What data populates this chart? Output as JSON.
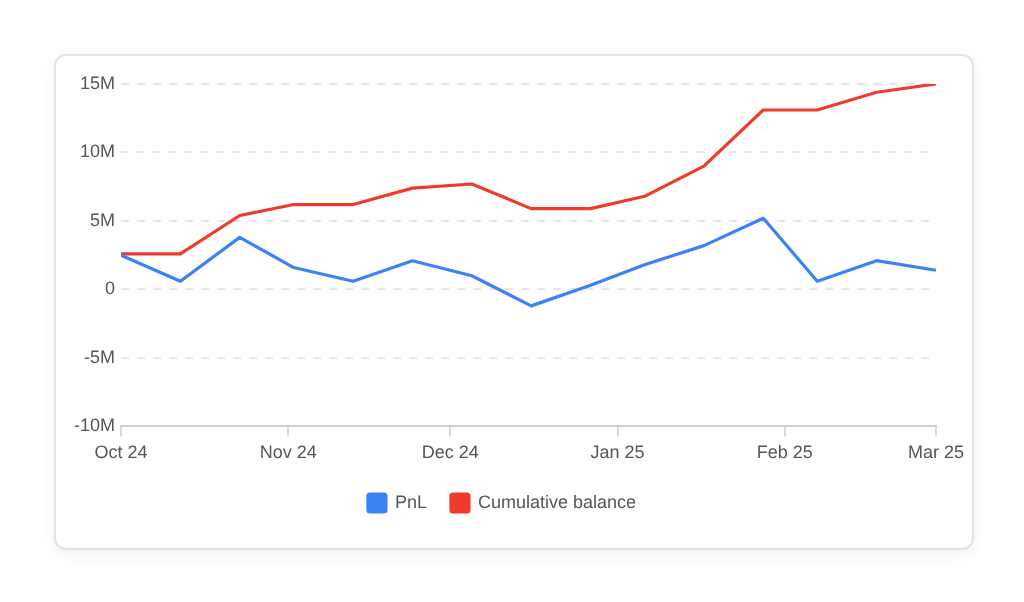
{
  "chart_data": {
    "type": "line",
    "x": [
      "2024-10-01",
      "2024-10-12",
      "2024-10-23",
      "2024-11-02",
      "2024-11-13",
      "2024-11-24",
      "2024-12-05",
      "2024-12-16",
      "2024-12-27",
      "2025-01-06",
      "2025-01-17",
      "2025-01-28",
      "2025-02-07",
      "2025-02-18",
      "2025-03-01"
    ],
    "series": [
      {
        "name": "PnL",
        "color": "#3b82f6",
        "values": [
          2500000,
          600000,
          3800000,
          1600000,
          600000,
          2100000,
          1000000,
          -1200000,
          300000,
          1800000,
          3200000,
          5200000,
          600000,
          2100000,
          1400000
        ]
      },
      {
        "name": "Cumulative balance",
        "color": "#ef3b2c",
        "values": [
          2600000,
          2600000,
          5400000,
          6200000,
          6200000,
          7400000,
          7700000,
          5900000,
          5900000,
          6800000,
          9000000,
          13100000,
          13100000,
          14400000,
          15000000
        ]
      }
    ],
    "xlim": [
      "2024-10-01",
      "2025-03-01"
    ],
    "xticks": [
      {
        "value": "2024-10-01",
        "label": "Oct 24"
      },
      {
        "value": "2024-11-01",
        "label": "Nov 24"
      },
      {
        "value": "2024-12-01",
        "label": "Dec 24"
      },
      {
        "value": "2025-01-01",
        "label": "Jan 25"
      },
      {
        "value": "2025-02-01",
        "label": "Feb 25"
      },
      {
        "value": "2025-03-01",
        "label": "Mar 25"
      }
    ],
    "ylim": [
      -10000000,
      15000000
    ],
    "yticks": [
      {
        "value": -10000000,
        "label": "-10M"
      },
      {
        "value": -5000000,
        "label": "-5M"
      },
      {
        "value": 0,
        "label": "0"
      },
      {
        "value": 5000000,
        "label": "5M"
      },
      {
        "value": 10000000,
        "label": "10M"
      },
      {
        "value": 15000000,
        "label": "15M"
      }
    ],
    "grid": "y",
    "legend": "bottom",
    "marker": "none",
    "line_style": "solid"
  }
}
